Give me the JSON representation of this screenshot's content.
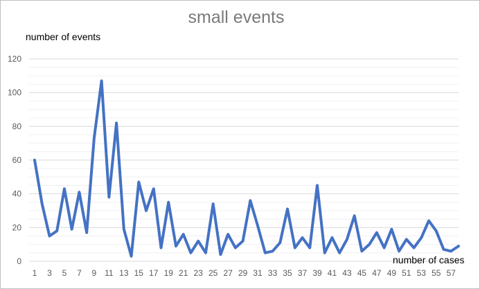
{
  "chart_data": {
    "type": "line",
    "title": "small events",
    "ylabel": "number of events",
    "xlabel": "number of cases",
    "ylim": [
      0,
      120
    ],
    "yticks": [
      0,
      20,
      40,
      60,
      80,
      100,
      120
    ],
    "grid": true,
    "legend": "none",
    "line_color": "#4472c4",
    "x": [
      1,
      2,
      3,
      4,
      5,
      6,
      7,
      8,
      9,
      10,
      11,
      12,
      13,
      14,
      15,
      16,
      17,
      18,
      19,
      20,
      21,
      22,
      23,
      24,
      25,
      26,
      27,
      28,
      29,
      30,
      31,
      32,
      33,
      34,
      35,
      36,
      37,
      38,
      39,
      40,
      41,
      42,
      43,
      44,
      45,
      46,
      47,
      48,
      49,
      50,
      51,
      52,
      53,
      54,
      55,
      56,
      57,
      58
    ],
    "xtick_labels": [
      "1",
      "3",
      "5",
      "7",
      "9",
      "11",
      "13",
      "15",
      "17",
      "19",
      "21",
      "23",
      "25",
      "27",
      "29",
      "31",
      "33",
      "35",
      "37",
      "39",
      "41",
      "43",
      "45",
      "47",
      "49",
      "51",
      "53",
      "55",
      "57"
    ],
    "values": [
      60,
      34,
      15,
      18,
      43,
      19,
      41,
      17,
      73,
      107,
      38,
      82,
      19,
      3,
      47,
      30,
      43,
      8,
      35,
      9,
      16,
      5,
      12,
      5,
      34,
      4,
      16,
      8,
      12,
      36,
      21,
      5,
      6,
      11,
      31,
      8,
      14,
      8,
      45,
      5,
      14,
      5,
      13,
      27,
      6,
      10,
      17,
      8,
      19,
      6,
      13,
      8,
      14,
      24,
      18,
      7,
      6,
      9
    ]
  }
}
